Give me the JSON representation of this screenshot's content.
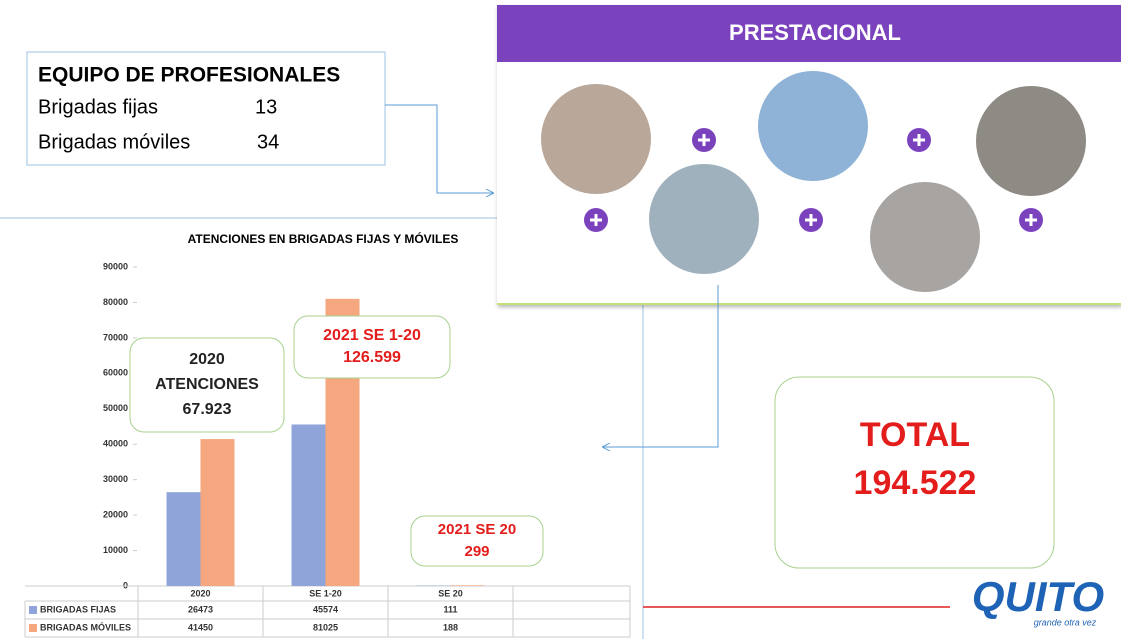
{
  "team_box": {
    "title": "EQUIPO DE PROFESIONALES",
    "rows": [
      [
        "Brigadas fijas",
        "13"
      ],
      [
        "Brigadas móviles",
        "34"
      ]
    ]
  },
  "prestacional": {
    "title": "PRESTACIONAL"
  },
  "chart_data": {
    "type": "bar",
    "title": "ATENCIONES EN BRIGADAS FIJAS Y MÓVILES",
    "categories": [
      "2020",
      "SE 1-20",
      "SE 20"
    ],
    "series": [
      {
        "name": "BRIGADAS FIJAS",
        "color": "#8fa5d9",
        "values": [
          26473,
          45574,
          111
        ]
      },
      {
        "name": "BRIGADAS MÓVILES",
        "color": "#f5a77f",
        "values": [
          41450,
          81025,
          188
        ]
      }
    ],
    "ylim": [
      0,
      90000
    ],
    "yticks": [
      0,
      10000,
      20000,
      30000,
      40000,
      50000,
      60000,
      70000,
      80000,
      90000
    ],
    "annotations": [
      [
        "2020",
        "ATENCIONES",
        "67.923"
      ],
      [
        "2021  SE 1-20",
        "126.599"
      ],
      [
        "2021  SE 20",
        "299"
      ]
    ]
  },
  "total": {
    "label": "TOTAL",
    "value": "194.522"
  },
  "logo": {
    "name": "QUITO",
    "slogan": "grande otra vez"
  }
}
